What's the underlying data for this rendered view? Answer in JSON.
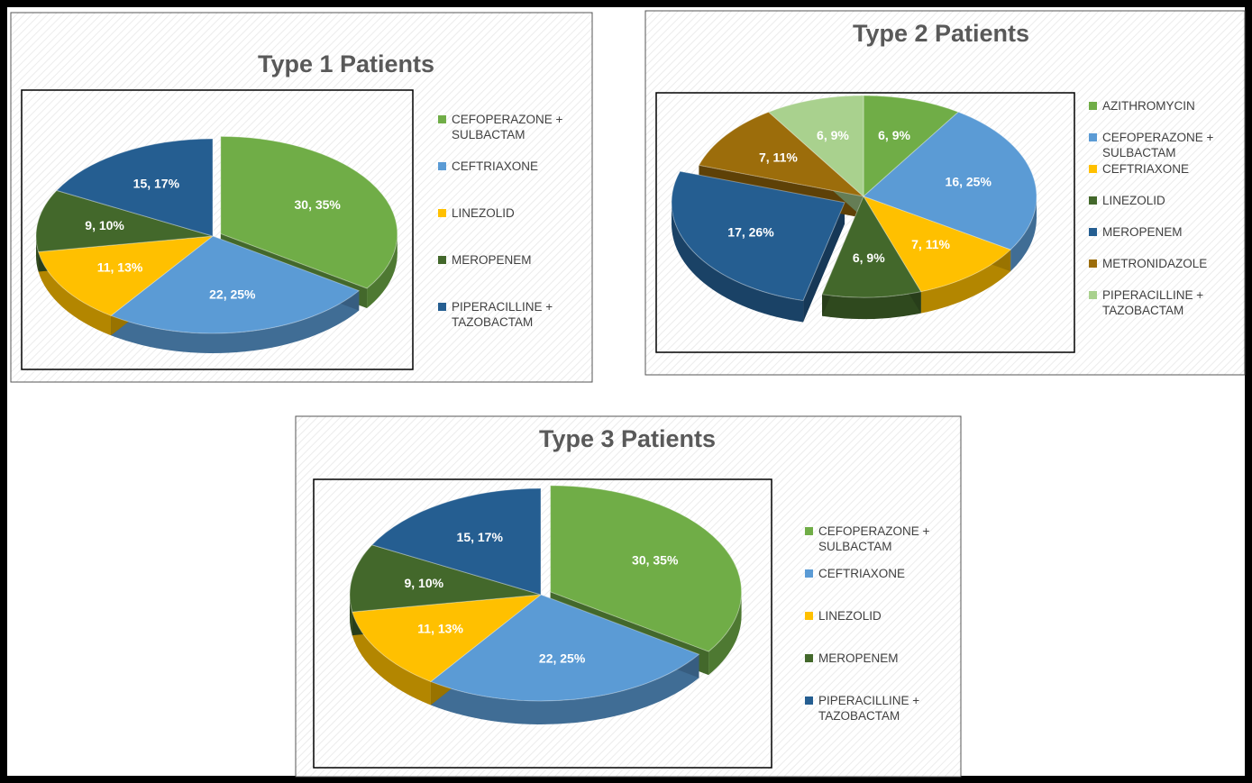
{
  "chart_data": [
    {
      "type": "pie",
      "title": "Type 1 Patients",
      "categories": [
        "CEFOPERAZONE + SULBACTAM",
        "CEFTRIAXONE",
        "LINEZOLID",
        "MEROPENEM",
        "PIPERACILLINE + TAZOBACTAM"
      ],
      "values": [
        30,
        22,
        11,
        9,
        15
      ],
      "value_labels": [
        "30, 35%",
        "22, 25%",
        "11, 13%",
        "9, 10%",
        "15, 17%"
      ],
      "colors": [
        "#70ad47",
        "#5b9bd5",
        "#ffc000",
        "#43682b",
        "#255e91"
      ]
    },
    {
      "type": "pie",
      "title": "Type 2 Patients",
      "categories": [
        "AZITHROMYCIN",
        "CEFOPERAZONE + SULBACTAM",
        "CEFTRIAXONE",
        "LINEZOLID",
        "MEROPENEM",
        "METRONIDAZOLE",
        "PIPERACILLINE + TAZOBACTAM"
      ],
      "values": [
        6,
        16,
        7,
        6,
        17,
        7,
        6
      ],
      "value_labels": [
        "6, 9%",
        "16, 25%",
        "7, 11%",
        "6, 9%",
        "17, 26%",
        "7, 11%",
        "6, 9%"
      ],
      "colors": [
        "#70ad47",
        "#5b9bd5",
        "#ffc000",
        "#43682b",
        "#255e91",
        "#9c6d0b",
        "#a9d18e"
      ]
    },
    {
      "type": "pie",
      "title": "Type 3 Patients",
      "categories": [
        "CEFOPERAZONE + SULBACTAM",
        "CEFTRIAXONE",
        "LINEZOLID",
        "MEROPENEM",
        "PIPERACILLINE + TAZOBACTAM"
      ],
      "values": [
        30,
        22,
        11,
        9,
        15
      ],
      "value_labels": [
        "30, 35%",
        "22, 25%",
        "11, 13%",
        "9, 10%",
        "15, 17%"
      ],
      "colors": [
        "#70ad47",
        "#5b9bd5",
        "#ffc000",
        "#43682b",
        "#255e91"
      ]
    }
  ]
}
